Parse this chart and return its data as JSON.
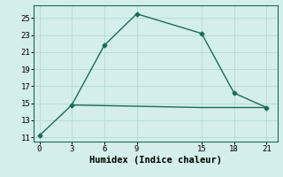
{
  "line1_x": [
    0,
    3,
    6,
    9,
    15,
    18,
    21
  ],
  "line1_y": [
    11.2,
    14.8,
    21.8,
    25.5,
    23.2,
    16.2,
    14.5
  ],
  "line2_x": [
    3,
    15,
    21
  ],
  "line2_y": [
    14.8,
    14.5,
    14.5
  ],
  "line_color": "#1a6b5a",
  "background_color": "#d4eeeb",
  "grid_color": "#b8ddd9",
  "xlabel": "Humidex (Indice chaleur)",
  "xlim": [
    -0.5,
    22
  ],
  "ylim": [
    10.5,
    26.5
  ],
  "xticks": [
    0,
    3,
    6,
    9,
    15,
    18,
    21
  ],
  "yticks": [
    11,
    13,
    15,
    17,
    19,
    21,
    23,
    25
  ],
  "tick_fontsize": 6.5,
  "xlabel_fontsize": 7.5,
  "marker": "D",
  "marker_size": 2.5,
  "linewidth": 1.0
}
